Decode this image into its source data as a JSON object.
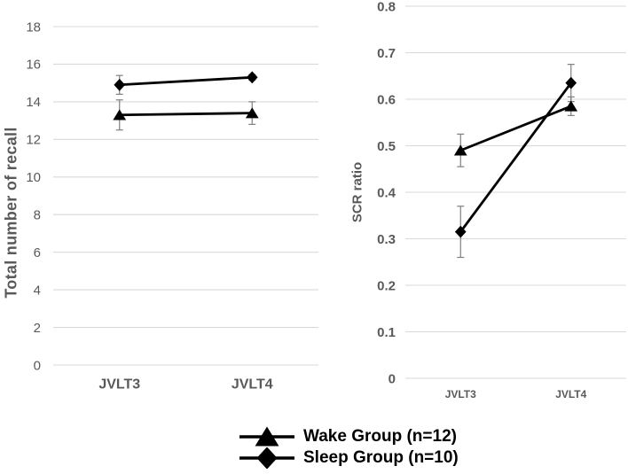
{
  "figure": {
    "background": "#ffffff",
    "text_color": "#595959",
    "gridline_color": "#d9d9d9",
    "series_color": "#000000",
    "error_bar_color": "#7f7f7f"
  },
  "legend": {
    "position": "bottom-center",
    "items": [
      {
        "label": "Wake Group (n=12)",
        "marker": "triangle"
      },
      {
        "label": "Sleep Group (n=10)",
        "marker": "diamond"
      }
    ]
  },
  "chart_data": [
    {
      "type": "line",
      "title": "",
      "xlabel": "",
      "ylabel": "Total number of recall",
      "categories": [
        "JVLT3",
        "JVLT4"
      ],
      "ylim": [
        0,
        18
      ],
      "ytick_values": [
        0,
        2,
        4,
        6,
        8,
        10,
        12,
        14,
        16,
        18
      ],
      "ytick_labels": [
        "0",
        "2",
        "4",
        "6",
        "8",
        "10",
        "12",
        "14",
        "16",
        "18"
      ],
      "grid": true,
      "legend_position": "bottom",
      "series": [
        {
          "name": "Wake Group (n=12)",
          "marker": "triangle",
          "values": [
            13.3,
            13.4
          ],
          "errors": [
            0.8,
            0.6
          ]
        },
        {
          "name": "Sleep Group (n=10)",
          "marker": "diamond",
          "values": [
            14.9,
            15.3
          ],
          "errors": [
            0.5,
            0.15
          ]
        }
      ]
    },
    {
      "type": "line",
      "title": "",
      "xlabel": "",
      "ylabel": "SCR ratio",
      "categories": [
        "JVLT3",
        "JVLT4"
      ],
      "ylim": [
        0,
        0.8
      ],
      "ytick_values": [
        0,
        0.1,
        0.2,
        0.3,
        0.4,
        0.5,
        0.6,
        0.7,
        0.8
      ],
      "ytick_labels": [
        "0",
        "0.1",
        "0.2",
        "0.3",
        "0.4",
        "0.5",
        "0.6",
        "0.7",
        "0.8"
      ],
      "grid": true,
      "legend_position": "bottom",
      "series": [
        {
          "name": "Wake Group (n=12)",
          "marker": "triangle",
          "values": [
            0.49,
            0.585
          ],
          "errors": [
            0.035,
            0.02
          ]
        },
        {
          "name": "Sleep Group (n=10)",
          "marker": "diamond",
          "values": [
            0.315,
            0.635
          ],
          "errors": [
            0.055,
            0.04
          ]
        }
      ]
    }
  ]
}
